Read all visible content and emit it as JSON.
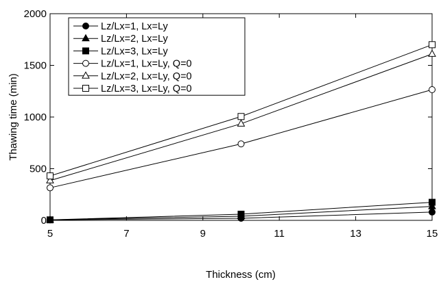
{
  "chart_data": {
    "type": "line",
    "xlabel": "Thickness (cm)",
    "ylabel": "Thawing time (min)",
    "xlim": [
      5,
      15
    ],
    "ylim": [
      0,
      2000
    ],
    "xticks": [
      5,
      7,
      9,
      11,
      13,
      15
    ],
    "yticks": [
      0,
      500,
      1000,
      1500,
      2000
    ],
    "x": [
      5,
      10,
      15
    ],
    "grid": false,
    "legend_position": "top-left",
    "series": [
      {
        "name": "Lz/Lx=1, Lx=Ly",
        "marker": "circle",
        "filled": true,
        "values": [
          5,
          20,
          80
        ]
      },
      {
        "name": "Lz/Lx=2, Lx=Ly",
        "marker": "triangle",
        "filled": true,
        "values": [
          5,
          40,
          135
        ]
      },
      {
        "name": "Lz/Lx=3, Lx=Ly",
        "marker": "square",
        "filled": true,
        "values": [
          5,
          60,
          175
        ]
      },
      {
        "name": "Lz/Lx=1, Lx=Ly, Q=0",
        "marker": "circle",
        "filled": false,
        "values": [
          315,
          740,
          1265
        ]
      },
      {
        "name": "Lz/Lx=2, Lx=Ly, Q=0",
        "marker": "triangle",
        "filled": false,
        "values": [
          385,
          935,
          1610
        ]
      },
      {
        "name": "Lz/Lx=3, Lx=Ly, Q=0",
        "marker": "square",
        "filled": false,
        "values": [
          430,
          1005,
          1700
        ]
      }
    ]
  }
}
